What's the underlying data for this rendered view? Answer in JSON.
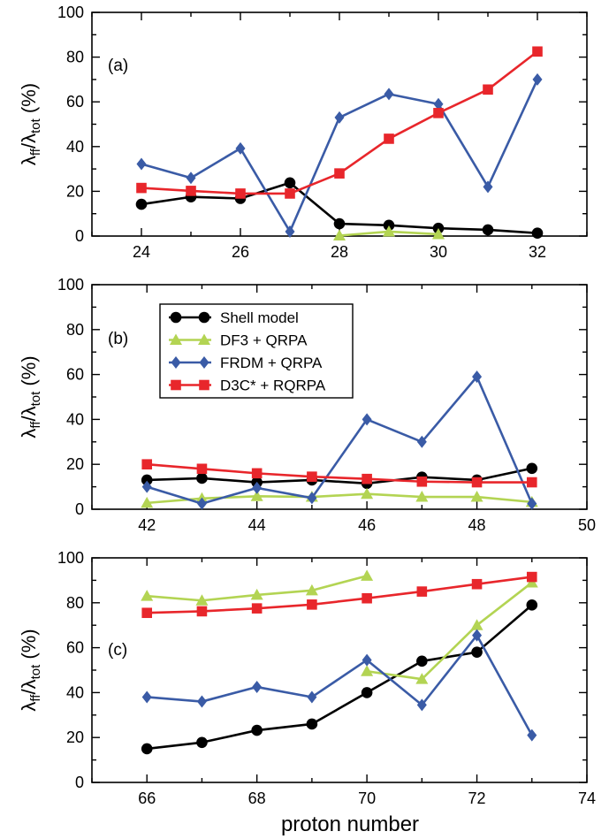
{
  "figure": {
    "xlabel_bottom": "proton number",
    "legend": [
      {
        "name": "Shell model",
        "color": "#000000",
        "marker": "circle"
      },
      {
        "name": "DF3 + QRPA",
        "color": "#b3d453",
        "marker": "triangle"
      },
      {
        "name": "FRDM + QRPA",
        "color": "#3a5ba6",
        "marker": "diamond"
      },
      {
        "name": "D3C* + RQRPA",
        "color": "#e8262b",
        "marker": "square"
      }
    ]
  },
  "chart_data": [
    {
      "type": "line",
      "panel_label": "(a)",
      "ylabel": "λff/λtot (%)",
      "xlim": [
        23,
        33
      ],
      "ylim": [
        0,
        100
      ],
      "xticks": [
        24,
        26,
        28,
        30,
        32
      ],
      "yticks": [
        0,
        20,
        40,
        60,
        80,
        100
      ],
      "series": [
        {
          "name": "Shell model",
          "color": "#000000",
          "marker": "circle",
          "x": [
            24,
            25,
            26,
            27,
            28,
            29,
            30,
            31,
            32
          ],
          "y": [
            14.2,
            17.5,
            16.8,
            23.8,
            5.5,
            4.8,
            3.5,
            2.8,
            1.3
          ]
        },
        {
          "name": "DF3 + QRPA",
          "color": "#b3d453",
          "marker": "triangle",
          "x": [
            28,
            29,
            30
          ],
          "y": [
            0.2,
            2.0,
            0.8
          ]
        },
        {
          "name": "FRDM + QRPA",
          "color": "#3a5ba6",
          "marker": "diamond",
          "x": [
            24,
            25,
            26,
            27,
            28,
            29,
            30,
            31,
            32
          ],
          "y": [
            32.2,
            26.0,
            39.2,
            2.0,
            53.0,
            63.5,
            59.0,
            22.0,
            70.0
          ]
        },
        {
          "name": "D3C* + RQRPA",
          "color": "#e8262b",
          "marker": "square",
          "x": [
            24,
            25,
            26,
            27,
            28,
            29,
            30,
            31,
            32
          ],
          "y": [
            21.5,
            20.2,
            19.0,
            19.0,
            28.0,
            43.5,
            55.0,
            65.5,
            82.5
          ]
        }
      ]
    },
    {
      "type": "line",
      "panel_label": "(b)",
      "ylabel": "λff/λtot (%)",
      "xlim": [
        41,
        50
      ],
      "ylim": [
        0,
        100
      ],
      "xticks": [
        42,
        44,
        46,
        48,
        50
      ],
      "yticks": [
        0,
        20,
        40,
        60,
        80,
        100
      ],
      "series": [
        {
          "name": "Shell model",
          "color": "#000000",
          "marker": "circle",
          "x": [
            42,
            43,
            44,
            45,
            46,
            47,
            48,
            49
          ],
          "y": [
            13.0,
            13.8,
            12.0,
            13.0,
            11.5,
            14.3,
            13.0,
            18.2
          ]
        },
        {
          "name": "DF3 + QRPA",
          "color": "#b3d453",
          "marker": "triangle",
          "x": [
            42,
            43,
            44,
            45,
            46,
            47,
            48,
            49
          ],
          "y": [
            2.8,
            4.8,
            5.8,
            5.5,
            6.8,
            5.5,
            5.5,
            3.2
          ]
        },
        {
          "name": "FRDM + QRPA",
          "color": "#3a5ba6",
          "marker": "diamond",
          "x": [
            42,
            43,
            44,
            45,
            46,
            47,
            48,
            49
          ],
          "y": [
            10.0,
            2.5,
            9.5,
            5.0,
            40.0,
            30.0,
            59.0,
            2.5
          ]
        },
        {
          "name": "D3C* + RQRPA",
          "color": "#e8262b",
          "marker": "square",
          "x": [
            42,
            43,
            44,
            45,
            46,
            47,
            48,
            49
          ],
          "y": [
            20.0,
            18.0,
            16.0,
            14.5,
            13.5,
            12.3,
            12.0,
            12.0
          ]
        }
      ]
    },
    {
      "type": "line",
      "panel_label": "(c)",
      "ylabel": "λff/λtot (%)",
      "xlabel": "proton number",
      "xlim": [
        65,
        74
      ],
      "ylim": [
        0,
        100
      ],
      "xticks": [
        66,
        68,
        70,
        72,
        74
      ],
      "yticks": [
        0,
        20,
        40,
        60,
        80,
        100
      ],
      "series": [
        {
          "name": "Shell model",
          "color": "#000000",
          "marker": "circle",
          "x": [
            66,
            67,
            68,
            69,
            70,
            71,
            72,
            73
          ],
          "y": [
            15.0,
            17.8,
            23.2,
            26.0,
            40.0,
            54.0,
            58.0,
            79.0
          ]
        },
        {
          "name": "DF3 + QRPA",
          "color": "#b3d453",
          "marker": "triangle",
          "x": [
            66,
            67,
            68,
            69,
            70,
            70,
            71,
            72,
            73
          ],
          "y": [
            83.0,
            81.0,
            83.5,
            85.5,
            92.0,
            49.5,
            46.0,
            70.0,
            89.0
          ],
          "break_after_index": 4
        },
        {
          "name": "FRDM + QRPA",
          "color": "#3a5ba6",
          "marker": "diamond",
          "x": [
            66,
            67,
            68,
            69,
            70,
            71,
            72,
            73
          ],
          "y": [
            38.0,
            36.0,
            42.5,
            38.0,
            54.5,
            34.5,
            65.5,
            21.0
          ]
        },
        {
          "name": "D3C* + RQRPA",
          "color": "#e8262b",
          "marker": "square",
          "x": [
            66,
            67,
            68,
            69,
            70,
            71,
            72,
            73
          ],
          "y": [
            75.5,
            76.2,
            77.5,
            79.2,
            82.0,
            85.0,
            88.3,
            91.5
          ]
        }
      ]
    }
  ]
}
